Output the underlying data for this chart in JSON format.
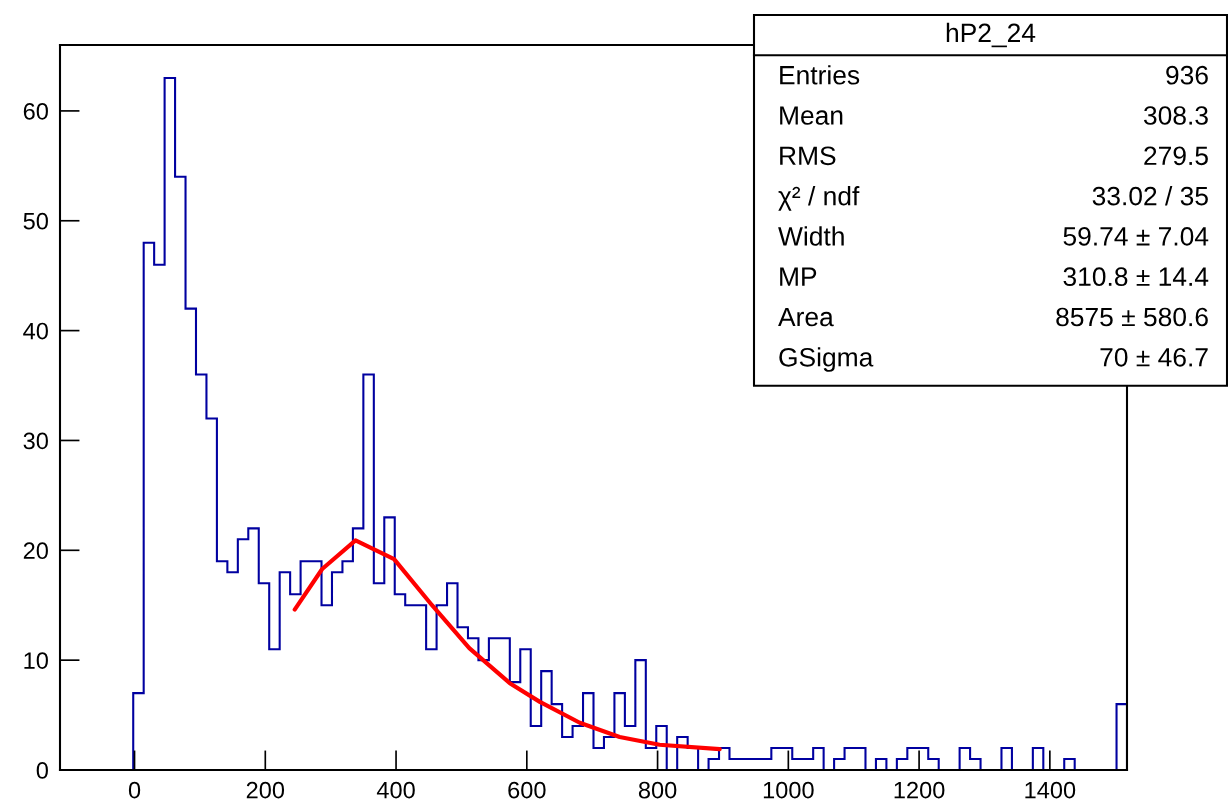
{
  "chart_data": {
    "type": "histogram",
    "bins": [
      -114,
      -98,
      -82,
      -66,
      -50,
      -34,
      -18,
      -2,
      14,
      30,
      46,
      62,
      78,
      94,
      110,
      126,
      142,
      158,
      174,
      190,
      206,
      222,
      238,
      254,
      270,
      286,
      302,
      318,
      334,
      350,
      366,
      382,
      398,
      414,
      430,
      446,
      462,
      478,
      494,
      510,
      526,
      542,
      558,
      574,
      590,
      606,
      622,
      638,
      654,
      670,
      686,
      702,
      718,
      734,
      750,
      766,
      782,
      798,
      814,
      830,
      846,
      862,
      878,
      894,
      910,
      926,
      942,
      958,
      974,
      990,
      1006,
      1022,
      1038,
      1054,
      1070,
      1086,
      1102,
      1118,
      1134,
      1150,
      1166,
      1182,
      1198,
      1214,
      1230,
      1246,
      1262,
      1278,
      1294,
      1310,
      1326,
      1342,
      1358,
      1374,
      1390,
      1406,
      1422,
      1438,
      1454,
      1470,
      1486,
      1502,
      1518
    ],
    "series": [
      {
        "type": "histogram",
        "color": "#0000a0",
        "values": [
          0,
          0,
          0,
          0,
          0,
          0,
          0,
          7,
          48,
          46,
          63,
          54,
          42,
          36,
          32,
          19,
          18,
          21,
          22,
          17,
          11,
          18,
          16,
          19,
          19,
          15,
          18,
          19,
          22,
          36,
          17,
          23,
          16,
          15,
          15,
          11,
          15,
          17,
          13,
          12,
          10,
          12,
          12,
          8,
          11,
          4,
          9,
          6,
          3,
          4,
          7,
          2,
          3,
          7,
          4,
          10,
          2,
          4,
          0,
          3,
          2,
          0,
          1,
          2,
          1,
          1,
          1,
          1,
          2,
          2,
          1,
          1,
          2,
          0,
          1,
          2,
          2,
          0,
          1,
          0,
          1,
          2,
          2,
          1,
          0,
          0,
          2,
          1,
          0,
          0,
          2,
          0,
          0,
          2,
          0,
          0,
          1,
          0,
          0,
          0,
          0,
          6
        ]
      },
      {
        "type": "line",
        "color": "#ff0000",
        "x": [
          245,
          287,
          338,
          397,
          455,
          512,
          574,
          620,
          681,
          742,
          803,
          895
        ],
        "values": [
          14.6,
          18.3,
          20.9,
          19.2,
          15.0,
          11.1,
          7.9,
          6.2,
          4.3,
          3.0,
          2.3,
          1.9
        ]
      }
    ],
    "xlim": [
      -114,
      1518
    ],
    "xticks": [
      0,
      200,
      400,
      600,
      800,
      1000,
      1200,
      1400
    ],
    "ylim": [
      0,
      66
    ],
    "yticks": [
      0,
      10,
      20,
      30,
      40,
      50,
      60
    ],
    "annotations": [
      "hP2_24",
      "Entries",
      "936",
      "Mean",
      "308.3",
      "RMS",
      "279.5",
      "χ² / ndf",
      "33.02 / 35",
      "Width",
      "59.74 ± 7.04",
      "MP",
      "310.8 ± 14.4",
      "Area",
      "8575 ± 580.6",
      "GSigma",
      "70 ± 46.7"
    ]
  }
}
